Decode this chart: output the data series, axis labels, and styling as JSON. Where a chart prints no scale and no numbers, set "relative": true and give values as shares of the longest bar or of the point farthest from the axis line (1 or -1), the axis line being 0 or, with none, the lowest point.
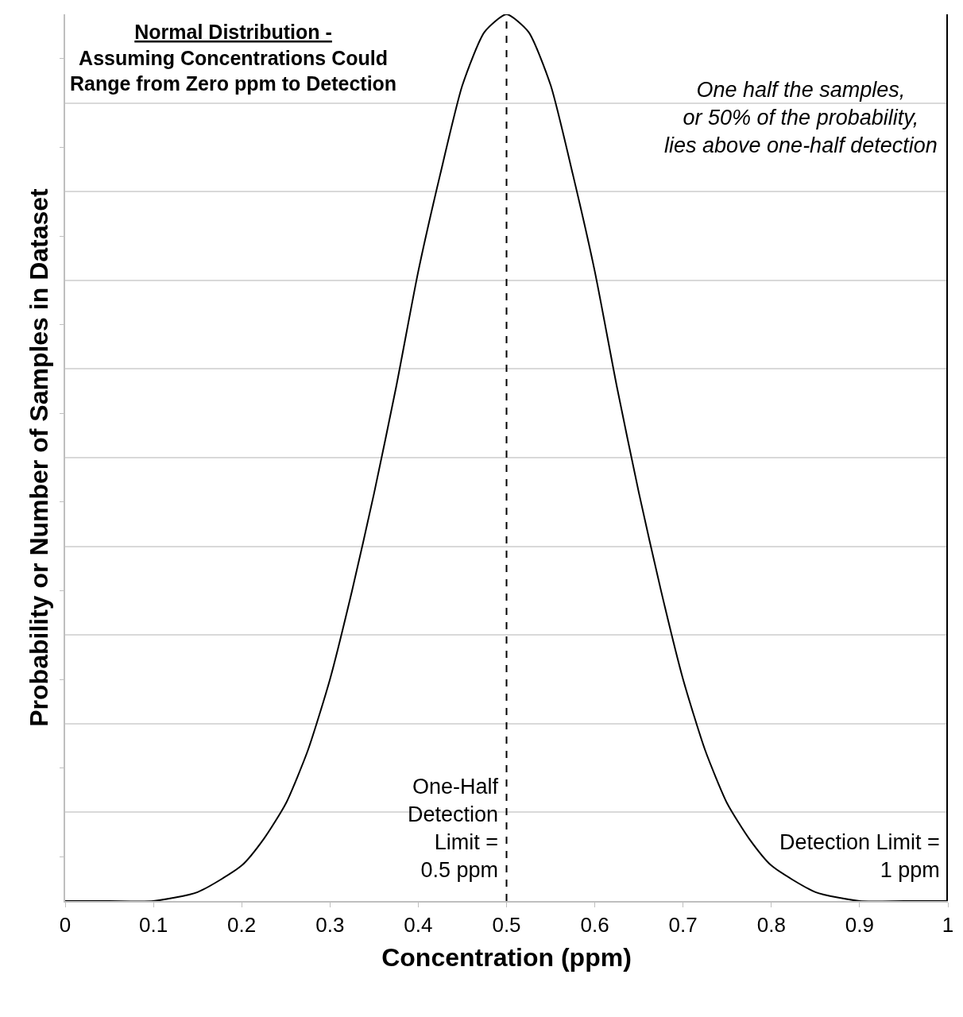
{
  "chart_data": {
    "type": "line",
    "title": "Normal Distribution -",
    "subtitle": "Assuming Concentrations Could\nRange from Zero ppm to Detection",
    "xlabel": "Concentration (ppm)",
    "ylabel": "Probability or Number of Samples in Dataset",
    "x": [
      0,
      0.05,
      0.1,
      0.15,
      0.2,
      0.225,
      0.25,
      0.275,
      0.3,
      0.325,
      0.35,
      0.375,
      0.4,
      0.425,
      0.45,
      0.475,
      0.5,
      0.525,
      0.55,
      0.575,
      0.6,
      0.625,
      0.65,
      0.675,
      0.7,
      0.725,
      0.75,
      0.775,
      0.8,
      0.85,
      0.9,
      0.95,
      1
    ],
    "series": [
      {
        "color": "#000000",
        "values": [
          0,
          0,
          0,
          0.01,
          0.04,
          0.07,
          0.11,
          0.17,
          0.25,
          0.35,
          0.46,
          0.58,
          0.71,
          0.82,
          0.92,
          0.98,
          1,
          0.98,
          0.92,
          0.82,
          0.71,
          0.58,
          0.46,
          0.35,
          0.25,
          0.17,
          0.11,
          0.07,
          0.04,
          0.01,
          0,
          0,
          0
        ]
      }
    ],
    "relative": true,
    "xlim": [
      0,
      1
    ],
    "xticks": [
      0,
      0.1,
      0.2,
      0.3,
      0.4,
      0.5,
      0.6,
      0.7,
      0.8,
      0.9,
      1
    ],
    "grid": "y",
    "marker": "none",
    "line_style": "solid",
    "ref_lines": [
      {
        "axis": "x",
        "value": 0.5,
        "label": "One-Half\nDetection\nLimit =\n0.5 ppm",
        "color": "#000000",
        "line_style": "dashed"
      },
      {
        "axis": "x",
        "value": 1,
        "label": "Detection Limit =\n1 ppm",
        "color": "#000000",
        "line_style": "solid"
      }
    ],
    "annotations": [
      "One half the samples,\nor 50% of the probability,\nlies above one-half detection"
    ]
  }
}
